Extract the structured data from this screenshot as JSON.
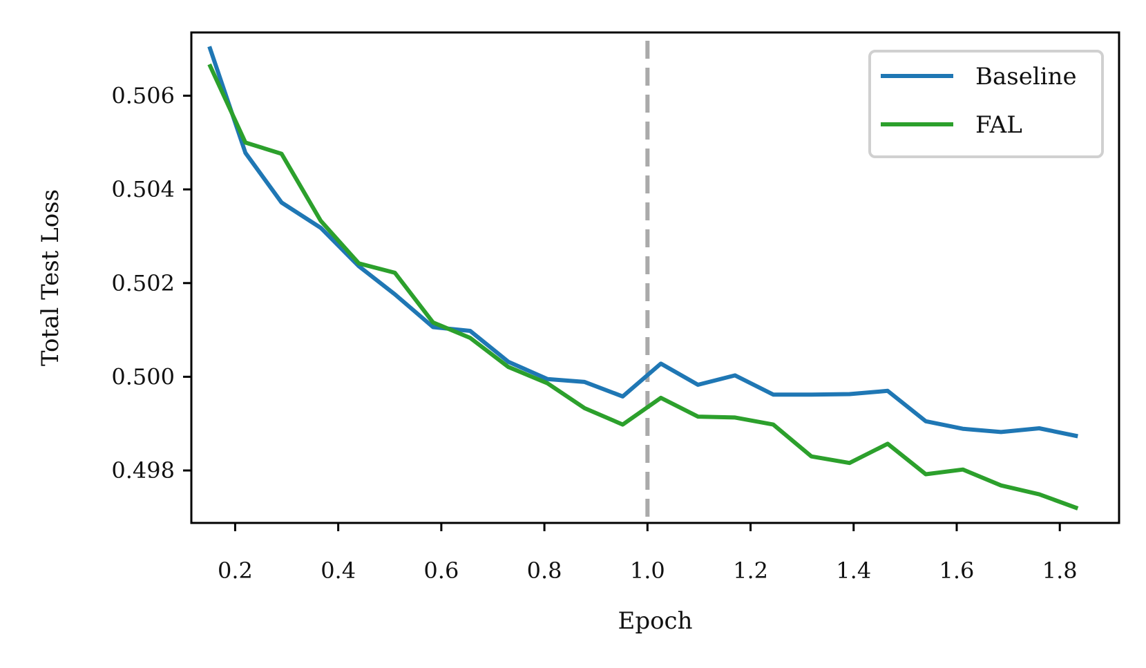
{
  "chart_data": {
    "type": "line",
    "title": "",
    "xlabel": "Epoch",
    "ylabel": "Total Test Loss",
    "xlim": [
      0.115,
      1.915
    ],
    "ylim": [
      0.49688,
      0.50735
    ],
    "x_ticks": [
      0.2,
      0.4,
      0.6,
      0.8,
      1.0,
      1.2,
      1.4,
      1.6,
      1.8
    ],
    "x_tick_labels": [
      "0.2",
      "0.4",
      "0.6",
      "0.8",
      "1.0",
      "1.2",
      "1.4",
      "1.6",
      "1.8"
    ],
    "y_ticks": [
      0.498,
      0.5,
      0.502,
      0.504,
      0.506
    ],
    "y_tick_labels": [
      "0.498",
      "0.500",
      "0.502",
      "0.504",
      "0.506"
    ],
    "grid": false,
    "legend_position": "top-right",
    "vline": {
      "x": 1.0,
      "style": "dashed",
      "color": "#aaaaaa"
    },
    "x": [
      0.15,
      0.22,
      0.29,
      0.366,
      0.44,
      0.51,
      0.584,
      0.656,
      0.73,
      0.806,
      0.878,
      0.952,
      1.026,
      1.098,
      1.17,
      1.244,
      1.318,
      1.392,
      1.466,
      1.54,
      1.612,
      1.686,
      1.76,
      1.835
    ],
    "series": [
      {
        "name": "Baseline",
        "color": "#1f77b4",
        "values": [
          0.50705,
          0.50478,
          0.50372,
          0.50318,
          0.50236,
          0.50176,
          0.50106,
          0.50098,
          0.50032,
          0.49995,
          0.49989,
          0.49958,
          0.50028,
          0.49983,
          0.50003,
          0.49962,
          0.49962,
          0.49963,
          0.4997,
          0.49905,
          0.49889,
          0.49882,
          0.4989,
          0.49873
        ]
      },
      {
        "name": "FAL",
        "color": "#2ca02c",
        "values": [
          0.50667,
          0.505,
          0.50476,
          0.50333,
          0.50242,
          0.50222,
          0.50116,
          0.50083,
          0.50021,
          0.49986,
          0.49933,
          0.49898,
          0.49955,
          0.49915,
          0.49913,
          0.49898,
          0.4983,
          0.49816,
          0.49857,
          0.49792,
          0.49802,
          0.49768,
          0.49749,
          0.49719
        ]
      }
    ]
  }
}
